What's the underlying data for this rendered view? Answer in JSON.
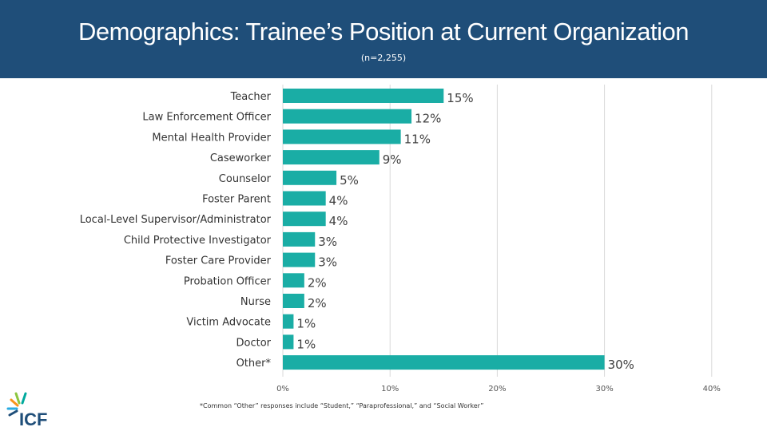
{
  "header": {
    "title": "Demographics: Trainee’s Position at Current Organization",
    "subtitle": "(n=2,255)"
  },
  "footnote": "*Common “Other” responses include “Student,” “Paraprofessional,” and “Social Worker”",
  "logo": {
    "text": "ICF",
    "icon": "icf-burst-logo"
  },
  "colors": {
    "header_bg": "#1f4e79",
    "bar": "#1aada5",
    "grid": "#d9d9d9"
  },
  "chart_data": {
    "type": "bar",
    "orientation": "horizontal",
    "categories": [
      "Teacher",
      "Law Enforcement Officer",
      "Mental Health Provider",
      "Caseworker",
      "Counselor",
      "Foster Parent",
      "Local-Level Supervisor/Administrator",
      "Child Protective Investigator",
      "Foster Care Provider",
      "Probation Officer",
      "Nurse",
      "Victim Advocate",
      "Doctor",
      "Other*"
    ],
    "values": [
      15,
      12,
      11,
      9,
      5,
      4,
      4,
      3,
      3,
      2,
      2,
      1,
      1,
      30
    ],
    "value_labels": [
      "15%",
      "12%",
      "11%",
      "9%",
      "5%",
      "4%",
      "4%",
      "3%",
      "3%",
      "2%",
      "2%",
      "1%",
      "1%",
      "30%"
    ],
    "x_ticks": [
      0,
      10,
      20,
      30,
      40
    ],
    "x_tick_labels": [
      "0%",
      "10%",
      "20%",
      "30%",
      "40%"
    ],
    "xlim": [
      0,
      40
    ],
    "grid": true
  }
}
